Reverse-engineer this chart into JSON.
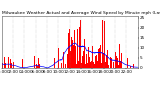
{
  "title": "Milwaukee Weather Actual and Average Wind Speed by Minute mph (Last 24 Hours)",
  "background_color": "#ffffff",
  "bar_color": "#ff0000",
  "line_color": "#0000ff",
  "n_points": 1440,
  "ylim": [
    0,
    26
  ],
  "yticks": [
    0,
    5,
    10,
    15,
    20,
    25
  ],
  "grid_color": "#999999",
  "title_fontsize": 3.2,
  "tick_fontsize": 3.0,
  "seed": 42
}
